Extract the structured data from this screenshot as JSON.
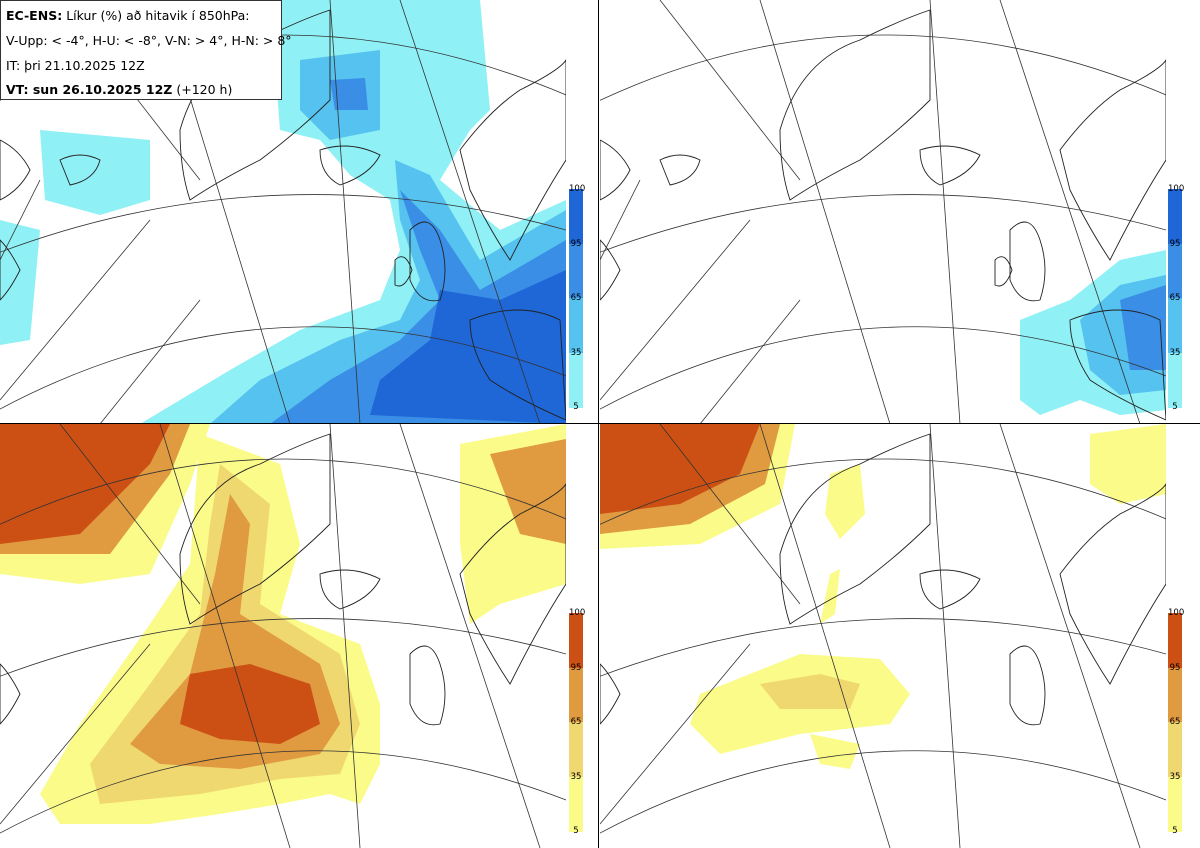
{
  "legend": {
    "model": "EC-ENS:",
    "title": "Líkur (%) að hitavik í 850hPa:",
    "thresholds": "V-Upp: < -4°, H-U: < -8°, V-N: > 4°, H-N: > 8°",
    "init_time": "IT: þri 21.10.2025 12Z",
    "valid_label": "VT: sun 26.10.2025 12Z",
    "lead_time": "(+120 h)"
  },
  "panels": [
    {
      "id": "V-Upp",
      "description_threshold": "< -4°",
      "scheme": "blue"
    },
    {
      "id": "H-U",
      "description_threshold": "< -8°",
      "scheme": "blue"
    },
    {
      "id": "V-N",
      "description_threshold": "> 4°",
      "scheme": "orange"
    },
    {
      "id": "H-N",
      "description_threshold": "> 8°",
      "scheme": "orange"
    }
  ],
  "colorbar": {
    "ticks": [
      "100",
      "95",
      "65",
      "35",
      "5"
    ],
    "blue_colors": [
      "#1f66d6",
      "#3a8ee6",
      "#56c2ef",
      "#8ff0f5"
    ],
    "orange_colors": [
      "#cc5014",
      "#e09a40",
      "#f0d870",
      "#fbfb8a"
    ]
  }
}
